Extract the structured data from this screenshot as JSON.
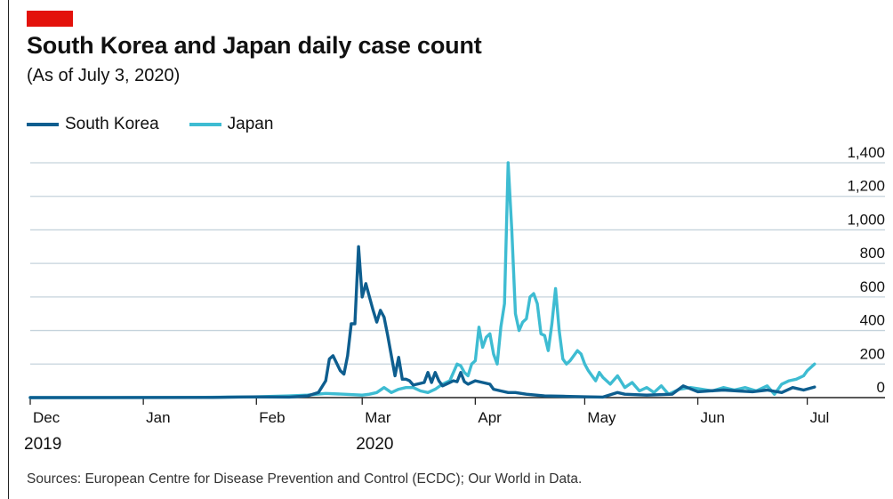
{
  "header": {
    "title": "South Korea and Japan daily case count",
    "subtitle": "(As of July 3, 2020)",
    "accent_color": "#e3120b"
  },
  "legend": [
    {
      "label": "South Korea",
      "color": "#0e5e8f"
    },
    {
      "label": "Japan",
      "color": "#3ebcd2"
    }
  ],
  "footer": {
    "source": "Sources: European Centre for Disease Prevention and Control (ECDC); Our World in Data."
  },
  "chart_data": {
    "type": "line",
    "title": "South Korea and Japan daily case count",
    "subtitle": "(As of July 3, 2020)",
    "ylim": [
      0,
      1400
    ],
    "y_ticks": [
      "1,400",
      "1,200",
      "1,000",
      "800",
      "600",
      "400",
      "200",
      "0"
    ],
    "y_tick_values": [
      1400,
      1200,
      1000,
      800,
      600,
      400,
      200,
      0
    ],
    "y_axis_side": "right",
    "grid": true,
    "legend_position": "top-left",
    "x_range": [
      "2019-12-01",
      "2020-07-05"
    ],
    "x_ticks": [
      {
        "label": "Dec",
        "date": "2019-12-01"
      },
      {
        "label": "Jan",
        "date": "2020-01-01"
      },
      {
        "label": "Feb",
        "date": "2020-02-01"
      },
      {
        "label": "Mar",
        "date": "2020-03-01"
      },
      {
        "label": "Apr",
        "date": "2020-04-01"
      },
      {
        "label": "May",
        "date": "2020-05-01"
      },
      {
        "label": "Jun",
        "date": "2020-06-01"
      },
      {
        "label": "Jul",
        "date": "2020-07-01"
      }
    ],
    "year_labels": [
      {
        "label": "2019",
        "date": "2019-12-01"
      },
      {
        "label": "2020",
        "date": "2020-03-01"
      }
    ],
    "series": [
      {
        "name": "South Korea",
        "color": "#0e5e8f",
        "points": [
          [
            "2019-12-01",
            0
          ],
          [
            "2020-01-20",
            1
          ],
          [
            "2020-01-31",
            4
          ],
          [
            "2020-02-10",
            3
          ],
          [
            "2020-02-15",
            10
          ],
          [
            "2020-02-18",
            30
          ],
          [
            "2020-02-20",
            100
          ],
          [
            "2020-02-21",
            230
          ],
          [
            "2020-02-22",
            250
          ],
          [
            "2020-02-24",
            160
          ],
          [
            "2020-02-25",
            140
          ],
          [
            "2020-02-26",
            250
          ],
          [
            "2020-02-27",
            440
          ],
          [
            "2020-02-28",
            440
          ],
          [
            "2020-02-29",
            900
          ],
          [
            "2020-03-01",
            600
          ],
          [
            "2020-03-02",
            680
          ],
          [
            "2020-03-03",
            600
          ],
          [
            "2020-03-04",
            520
          ],
          [
            "2020-03-05",
            450
          ],
          [
            "2020-03-06",
            520
          ],
          [
            "2020-03-07",
            480
          ],
          [
            "2020-03-08",
            370
          ],
          [
            "2020-03-09",
            250
          ],
          [
            "2020-03-10",
            130
          ],
          [
            "2020-03-11",
            240
          ],
          [
            "2020-03-12",
            110
          ],
          [
            "2020-03-13",
            110
          ],
          [
            "2020-03-14",
            100
          ],
          [
            "2020-03-15",
            75
          ],
          [
            "2020-03-17",
            85
          ],
          [
            "2020-03-18",
            90
          ],
          [
            "2020-03-19",
            150
          ],
          [
            "2020-03-20",
            90
          ],
          [
            "2020-03-21",
            150
          ],
          [
            "2020-03-22",
            100
          ],
          [
            "2020-03-23",
            70
          ],
          [
            "2020-03-24",
            80
          ],
          [
            "2020-03-26",
            100
          ],
          [
            "2020-03-27",
            95
          ],
          [
            "2020-03-28",
            150
          ],
          [
            "2020-03-29",
            95
          ],
          [
            "2020-03-30",
            80
          ],
          [
            "2020-04-01",
            100
          ],
          [
            "2020-04-03",
            90
          ],
          [
            "2020-04-05",
            80
          ],
          [
            "2020-04-06",
            50
          ],
          [
            "2020-04-08",
            40
          ],
          [
            "2020-04-10",
            30
          ],
          [
            "2020-04-12",
            30
          ],
          [
            "2020-04-15",
            20
          ],
          [
            "2020-04-20",
            10
          ],
          [
            "2020-04-25",
            8
          ],
          [
            "2020-05-01",
            5
          ],
          [
            "2020-05-06",
            3
          ],
          [
            "2020-05-10",
            30
          ],
          [
            "2020-05-12",
            20
          ],
          [
            "2020-05-18",
            15
          ],
          [
            "2020-05-25",
            20
          ],
          [
            "2020-05-28",
            70
          ],
          [
            "2020-06-01",
            35
          ],
          [
            "2020-06-04",
            40
          ],
          [
            "2020-06-08",
            45
          ],
          [
            "2020-06-12",
            40
          ],
          [
            "2020-06-16",
            35
          ],
          [
            "2020-06-20",
            45
          ],
          [
            "2020-06-24",
            30
          ],
          [
            "2020-06-27",
            60
          ],
          [
            "2020-06-30",
            45
          ],
          [
            "2020-07-03",
            63
          ]
        ]
      },
      {
        "name": "Japan",
        "color": "#3ebcd2",
        "points": [
          [
            "2019-12-01",
            0
          ],
          [
            "2020-01-15",
            1
          ],
          [
            "2020-01-31",
            4
          ],
          [
            "2020-02-10",
            10
          ],
          [
            "2020-02-15",
            15
          ],
          [
            "2020-02-20",
            25
          ],
          [
            "2020-02-25",
            20
          ],
          [
            "2020-03-01",
            15
          ],
          [
            "2020-03-03",
            20
          ],
          [
            "2020-03-05",
            30
          ],
          [
            "2020-03-07",
            60
          ],
          [
            "2020-03-09",
            30
          ],
          [
            "2020-03-11",
            50
          ],
          [
            "2020-03-13",
            60
          ],
          [
            "2020-03-15",
            60
          ],
          [
            "2020-03-17",
            40
          ],
          [
            "2020-03-19",
            30
          ],
          [
            "2020-03-21",
            50
          ],
          [
            "2020-03-23",
            80
          ],
          [
            "2020-03-25",
            100
          ],
          [
            "2020-03-27",
            200
          ],
          [
            "2020-03-28",
            190
          ],
          [
            "2020-03-29",
            150
          ],
          [
            "2020-03-30",
            130
          ],
          [
            "2020-03-31",
            200
          ],
          [
            "2020-04-01",
            220
          ],
          [
            "2020-04-02",
            420
          ],
          [
            "2020-04-03",
            300
          ],
          [
            "2020-04-04",
            360
          ],
          [
            "2020-04-05",
            380
          ],
          [
            "2020-04-06",
            260
          ],
          [
            "2020-04-07",
            200
          ],
          [
            "2020-04-08",
            420
          ],
          [
            "2020-04-09",
            560
          ],
          [
            "2020-04-10",
            1400
          ],
          [
            "2020-04-11",
            1000
          ],
          [
            "2020-04-12",
            500
          ],
          [
            "2020-04-13",
            400
          ],
          [
            "2020-04-14",
            450
          ],
          [
            "2020-04-15",
            470
          ],
          [
            "2020-04-16",
            600
          ],
          [
            "2020-04-17",
            620
          ],
          [
            "2020-04-18",
            560
          ],
          [
            "2020-04-19",
            380
          ],
          [
            "2020-04-20",
            370
          ],
          [
            "2020-04-21",
            280
          ],
          [
            "2020-04-22",
            440
          ],
          [
            "2020-04-23",
            650
          ],
          [
            "2020-04-24",
            400
          ],
          [
            "2020-04-25",
            230
          ],
          [
            "2020-04-26",
            200
          ],
          [
            "2020-04-27",
            220
          ],
          [
            "2020-04-28",
            250
          ],
          [
            "2020-04-29",
            280
          ],
          [
            "2020-04-30",
            260
          ],
          [
            "2020-05-01",
            200
          ],
          [
            "2020-05-02",
            160
          ],
          [
            "2020-05-03",
            130
          ],
          [
            "2020-05-04",
            100
          ],
          [
            "2020-05-05",
            150
          ],
          [
            "2020-05-06",
            120
          ],
          [
            "2020-05-08",
            80
          ],
          [
            "2020-05-10",
            130
          ],
          [
            "2020-05-12",
            60
          ],
          [
            "2020-05-14",
            90
          ],
          [
            "2020-05-16",
            40
          ],
          [
            "2020-05-18",
            60
          ],
          [
            "2020-05-20",
            30
          ],
          [
            "2020-05-22",
            70
          ],
          [
            "2020-05-24",
            20
          ],
          [
            "2020-05-27",
            50
          ],
          [
            "2020-05-30",
            60
          ],
          [
            "2020-06-02",
            50
          ],
          [
            "2020-06-05",
            40
          ],
          [
            "2020-06-08",
            60
          ],
          [
            "2020-06-11",
            45
          ],
          [
            "2020-06-14",
            60
          ],
          [
            "2020-06-17",
            40
          ],
          [
            "2020-06-20",
            70
          ],
          [
            "2020-06-22",
            20
          ],
          [
            "2020-06-24",
            80
          ],
          [
            "2020-06-26",
            100
          ],
          [
            "2020-06-28",
            110
          ],
          [
            "2020-06-30",
            130
          ],
          [
            "2020-07-01",
            160
          ],
          [
            "2020-07-03",
            200
          ]
        ]
      }
    ]
  }
}
